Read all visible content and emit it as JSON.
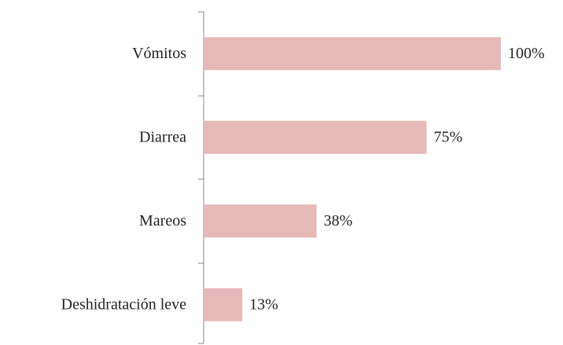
{
  "chart_data": {
    "type": "barh",
    "categories": [
      "Vómitos",
      "Diarrea",
      "Mareos",
      "Deshidratación leve"
    ],
    "values": [
      100,
      75,
      38,
      13
    ],
    "value_labels": [
      "100%",
      "75%",
      "38%",
      "13%"
    ],
    "color": "#e6b9b8",
    "xlim": [
      0,
      100
    ]
  }
}
